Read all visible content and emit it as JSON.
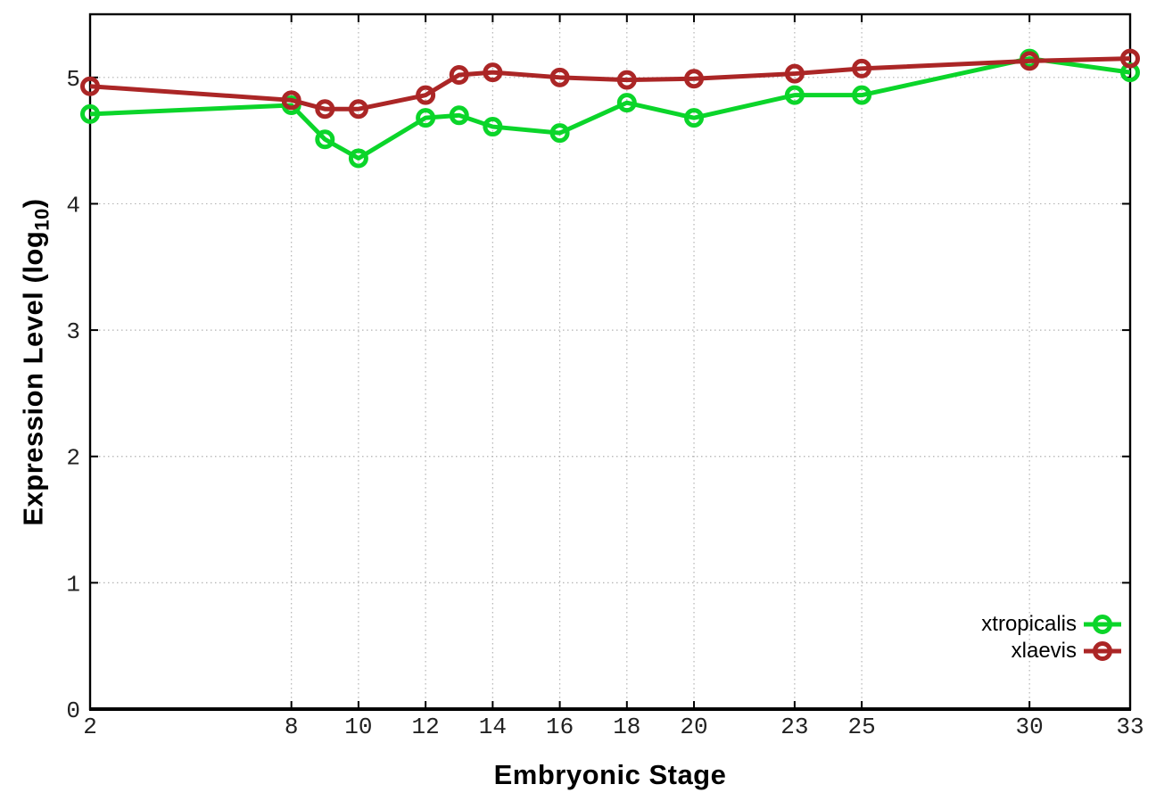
{
  "chart_data": {
    "type": "line",
    "title": "",
    "xlabel": "Embryonic Stage",
    "ylabel": "Expression Level (log10)",
    "ylabel_parts": {
      "prefix": "Expression Level (log",
      "sub": "10",
      "suffix": ")"
    },
    "x": [
      2,
      8,
      9,
      10,
      12,
      13,
      14,
      16,
      18,
      20,
      23,
      25,
      30,
      33
    ],
    "series": [
      {
        "name": "xtropicalis",
        "color": "#0bd52a",
        "values": [
          4.71,
          4.78,
          4.51,
          4.36,
          4.68,
          4.7,
          4.61,
          4.56,
          4.8,
          4.68,
          4.86,
          4.86,
          5.15,
          5.04
        ]
      },
      {
        "name": "xlaevis",
        "color": "#ab2626",
        "values": [
          4.93,
          4.82,
          4.75,
          4.75,
          4.86,
          5.02,
          5.04,
          5.0,
          4.98,
          4.99,
          5.03,
          5.07,
          5.13,
          5.15
        ]
      }
    ],
    "x_ticks": [
      2,
      8,
      10,
      12,
      14,
      16,
      18,
      20,
      23,
      25,
      30,
      33
    ],
    "y_ticks": [
      0,
      1,
      2,
      3,
      4,
      5
    ],
    "xlim": [
      2,
      33
    ],
    "ylim": [
      0,
      5.5
    ],
    "grid": true,
    "grid_color": "#b3b3b3",
    "axis_color": "#000000",
    "tick_label_color": "#222222",
    "marker": "open-circle",
    "legend": {
      "position": "inside-right",
      "entries": [
        "xtropicalis",
        "xlaevis"
      ]
    }
  }
}
